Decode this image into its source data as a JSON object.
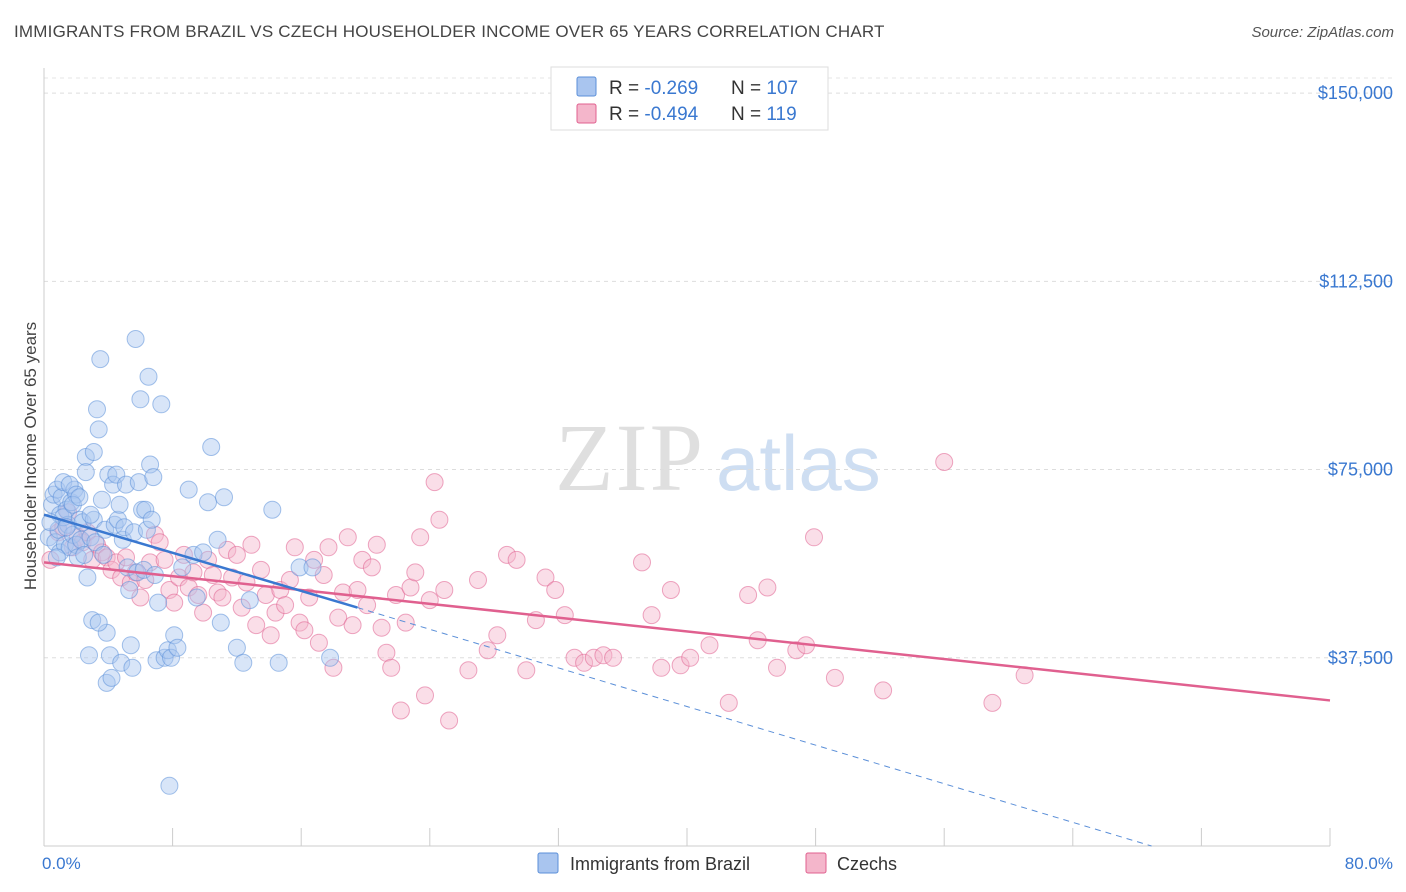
{
  "title": "IMMIGRANTS FROM BRAZIL VS CZECH HOUSEHOLDER INCOME OVER 65 YEARS CORRELATION CHART",
  "source": "Source: ZipAtlas.com",
  "watermark": {
    "zip": "ZIP",
    "atlas": "atlas"
  },
  "colors": {
    "blue": "#5b8fd8",
    "blue_fill": "#a9c5ef",
    "pink": "#e0608f",
    "pink_fill": "#f4b6cb",
    "axis_text": "#3a78d0"
  },
  "legend": {
    "rows": [
      {
        "r_label": "R = ",
        "r_value": "-0.269",
        "n_label": "N = ",
        "n_value": "107"
      },
      {
        "r_label": "R = ",
        "r_value": "-0.494",
        "n_label": "N = ",
        "n_value": "119"
      }
    ]
  },
  "bottom_legend": [
    "Immigrants from Brazil",
    "Czechs"
  ],
  "chart_data": {
    "type": "scatter",
    "title": "IMMIGRANTS FROM BRAZIL VS CZECH HOUSEHOLDER INCOME OVER 65 YEARS CORRELATION CHART",
    "xlabel": "",
    "ylabel": "Householder Income Over 65 years",
    "xlim": [
      0,
      80
    ],
    "ylim": [
      0,
      155000
    ],
    "x_tick_labels": [
      "0.0%",
      "80.0%"
    ],
    "y_ticks": [
      37500,
      75000,
      112500,
      150000
    ],
    "y_tick_labels": [
      "$37,500",
      "$75,000",
      "$112,500",
      "$150,000"
    ],
    "grid": true,
    "series": [
      {
        "name": "Immigrants from Brazil",
        "r": -0.269,
        "n": 107,
        "trend": {
          "x": [
            0,
            19.5
          ],
          "y": [
            66000,
            47500
          ]
        },
        "trend_extension": {
          "x": [
            19.5,
            68.9
          ],
          "y": [
            47500,
            0
          ]
        },
        "points": [
          [
            0.3,
            61500
          ],
          [
            0.5,
            68000
          ],
          [
            0.6,
            70000
          ],
          [
            0.7,
            60500
          ],
          [
            0.8,
            71000
          ],
          [
            0.9,
            63000
          ],
          [
            1.0,
            66000
          ],
          [
            1.0,
            58500
          ],
          [
            1.1,
            69500
          ],
          [
            1.2,
            72500
          ],
          [
            1.3,
            60000
          ],
          [
            1.4,
            67000
          ],
          [
            1.5,
            64000
          ],
          [
            1.6,
            59500
          ],
          [
            1.7,
            68500
          ],
          [
            1.8,
            62000
          ],
          [
            1.9,
            71000
          ],
          [
            2.0,
            60000
          ],
          [
            2.1,
            57500
          ],
          [
            2.2,
            65000
          ],
          [
            2.3,
            61000
          ],
          [
            2.4,
            64500
          ],
          [
            2.5,
            58000
          ],
          [
            2.6,
            77500
          ],
          [
            2.6,
            74500
          ],
          [
            2.7,
            53500
          ],
          [
            2.8,
            38000
          ],
          [
            2.9,
            61500
          ],
          [
            3.0,
            45000
          ],
          [
            3.1,
            78500
          ],
          [
            3.1,
            65000
          ],
          [
            3.2,
            60500
          ],
          [
            3.3,
            87000
          ],
          [
            3.4,
            83000
          ],
          [
            3.5,
            97000
          ],
          [
            3.6,
            69000
          ],
          [
            3.7,
            58000
          ],
          [
            3.8,
            63000
          ],
          [
            3.9,
            42500
          ],
          [
            3.9,
            32500
          ],
          [
            4.0,
            74000
          ],
          [
            4.1,
            38000
          ],
          [
            4.2,
            33500
          ],
          [
            4.3,
            72000
          ],
          [
            4.4,
            64000
          ],
          [
            4.5,
            74000
          ],
          [
            4.6,
            65000
          ],
          [
            4.7,
            68000
          ],
          [
            4.8,
            36500
          ],
          [
            4.9,
            61000
          ],
          [
            5.0,
            63500
          ],
          [
            5.1,
            72000
          ],
          [
            5.2,
            55500
          ],
          [
            5.3,
            51000
          ],
          [
            5.4,
            40000
          ],
          [
            5.5,
            35500
          ],
          [
            5.6,
            62500
          ],
          [
            5.7,
            101000
          ],
          [
            5.8,
            54500
          ],
          [
            5.9,
            72500
          ],
          [
            6.0,
            89000
          ],
          [
            6.1,
            67000
          ],
          [
            6.2,
            55000
          ],
          [
            6.3,
            67000
          ],
          [
            6.4,
            63000
          ],
          [
            6.5,
            93500
          ],
          [
            6.6,
            76000
          ],
          [
            6.7,
            65000
          ],
          [
            6.8,
            73500
          ],
          [
            6.9,
            54000
          ],
          [
            7.0,
            37000
          ],
          [
            7.1,
            48500
          ],
          [
            7.3,
            88000
          ],
          [
            7.5,
            37500
          ],
          [
            7.7,
            39000
          ],
          [
            7.9,
            37500
          ],
          [
            8.1,
            42000
          ],
          [
            8.3,
            39500
          ],
          [
            8.6,
            55500
          ],
          [
            9.0,
            71000
          ],
          [
            9.3,
            58000
          ],
          [
            9.5,
            49500
          ],
          [
            9.9,
            58500
          ],
          [
            10.2,
            68500
          ],
          [
            10.4,
            79500
          ],
          [
            10.8,
            61000
          ],
          [
            11.0,
            44500
          ],
          [
            11.2,
            69500
          ],
          [
            12.0,
            39500
          ],
          [
            12.4,
            36500
          ],
          [
            12.8,
            49000
          ],
          [
            14.2,
            67000
          ],
          [
            14.6,
            36500
          ],
          [
            15.9,
            55500
          ],
          [
            16.7,
            55500
          ],
          [
            17.8,
            37500
          ],
          [
            1.2,
            65500
          ],
          [
            1.6,
            72000
          ],
          [
            2.0,
            70000
          ],
          [
            2.9,
            66000
          ],
          [
            0.4,
            64500
          ],
          [
            0.8,
            57500
          ],
          [
            1.4,
            63500
          ],
          [
            1.8,
            68000
          ],
          [
            2.2,
            69500
          ],
          [
            3.4,
            44500
          ],
          [
            7.8,
            12000
          ]
        ]
      },
      {
        "name": "Czechs",
        "r": -0.494,
        "n": 119,
        "trend": {
          "x": [
            0,
            80
          ],
          "y": [
            56500,
            29000
          ]
        },
        "points": [
          [
            0.4,
            57000
          ],
          [
            0.9,
            62500
          ],
          [
            1.2,
            63500
          ],
          [
            1.5,
            66500
          ],
          [
            1.8,
            59500
          ],
          [
            2.1,
            61500
          ],
          [
            2.4,
            60500
          ],
          [
            2.7,
            62500
          ],
          [
            3.0,
            57000
          ],
          [
            3.3,
            60000
          ],
          [
            3.6,
            58500
          ],
          [
            3.9,
            57500
          ],
          [
            4.2,
            55000
          ],
          [
            4.5,
            56500
          ],
          [
            4.8,
            53500
          ],
          [
            5.1,
            57500
          ],
          [
            5.4,
            52500
          ],
          [
            5.7,
            54500
          ],
          [
            6.0,
            49500
          ],
          [
            6.3,
            53000
          ],
          [
            6.6,
            56500
          ],
          [
            6.9,
            62000
          ],
          [
            7.2,
            60500
          ],
          [
            7.5,
            57000
          ],
          [
            7.8,
            51000
          ],
          [
            8.1,
            48500
          ],
          [
            8.4,
            53500
          ],
          [
            8.7,
            58000
          ],
          [
            9.0,
            51500
          ],
          [
            9.3,
            54500
          ],
          [
            9.6,
            50000
          ],
          [
            9.9,
            46500
          ],
          [
            10.2,
            57000
          ],
          [
            10.5,
            54000
          ],
          [
            10.8,
            50500
          ],
          [
            11.1,
            49500
          ],
          [
            11.4,
            59000
          ],
          [
            11.7,
            53500
          ],
          [
            12.0,
            58000
          ],
          [
            12.3,
            47500
          ],
          [
            12.6,
            52500
          ],
          [
            12.9,
            60000
          ],
          [
            13.2,
            44000
          ],
          [
            13.5,
            55000
          ],
          [
            13.8,
            50000
          ],
          [
            14.1,
            42000
          ],
          [
            14.4,
            46500
          ],
          [
            14.7,
            51000
          ],
          [
            15.0,
            48000
          ],
          [
            15.3,
            53000
          ],
          [
            15.6,
            59500
          ],
          [
            15.9,
            44500
          ],
          [
            16.2,
            43000
          ],
          [
            16.5,
            49500
          ],
          [
            16.8,
            57000
          ],
          [
            17.1,
            40500
          ],
          [
            17.4,
            54000
          ],
          [
            17.7,
            59500
          ],
          [
            18.0,
            35500
          ],
          [
            18.3,
            45500
          ],
          [
            18.6,
            50500
          ],
          [
            18.9,
            61500
          ],
          [
            19.2,
            44000
          ],
          [
            19.5,
            51000
          ],
          [
            19.8,
            57000
          ],
          [
            20.1,
            48000
          ],
          [
            20.4,
            55500
          ],
          [
            20.7,
            60000
          ],
          [
            21.0,
            43500
          ],
          [
            21.3,
            38500
          ],
          [
            21.6,
            35500
          ],
          [
            21.9,
            50000
          ],
          [
            22.2,
            27000
          ],
          [
            22.5,
            44500
          ],
          [
            22.8,
            51500
          ],
          [
            23.1,
            54500
          ],
          [
            23.4,
            61500
          ],
          [
            23.7,
            30000
          ],
          [
            24.0,
            49000
          ],
          [
            24.3,
            72500
          ],
          [
            24.6,
            65000
          ],
          [
            24.9,
            51000
          ],
          [
            25.2,
            25000
          ],
          [
            26.4,
            35000
          ],
          [
            27.0,
            53000
          ],
          [
            27.6,
            39000
          ],
          [
            28.2,
            42000
          ],
          [
            28.8,
            58000
          ],
          [
            29.4,
            57000
          ],
          [
            30.0,
            35000
          ],
          [
            30.6,
            45000
          ],
          [
            31.2,
            53500
          ],
          [
            31.8,
            51000
          ],
          [
            32.4,
            46000
          ],
          [
            33.0,
            37500
          ],
          [
            33.6,
            36500
          ],
          [
            34.2,
            37500
          ],
          [
            34.8,
            38000
          ],
          [
            35.4,
            37500
          ],
          [
            37.2,
            56500
          ],
          [
            37.8,
            46000
          ],
          [
            38.4,
            35500
          ],
          [
            39.0,
            51000
          ],
          [
            39.6,
            36000
          ],
          [
            40.2,
            37500
          ],
          [
            41.4,
            40000
          ],
          [
            42.6,
            28500
          ],
          [
            43.8,
            50000
          ],
          [
            44.4,
            41000
          ],
          [
            45.0,
            51500
          ],
          [
            45.6,
            35500
          ],
          [
            46.8,
            39000
          ],
          [
            47.4,
            40000
          ],
          [
            47.9,
            61500
          ],
          [
            49.2,
            33500
          ],
          [
            52.2,
            31000
          ],
          [
            56.0,
            76500
          ],
          [
            59.0,
            28500
          ],
          [
            61.0,
            34000
          ]
        ]
      }
    ]
  }
}
